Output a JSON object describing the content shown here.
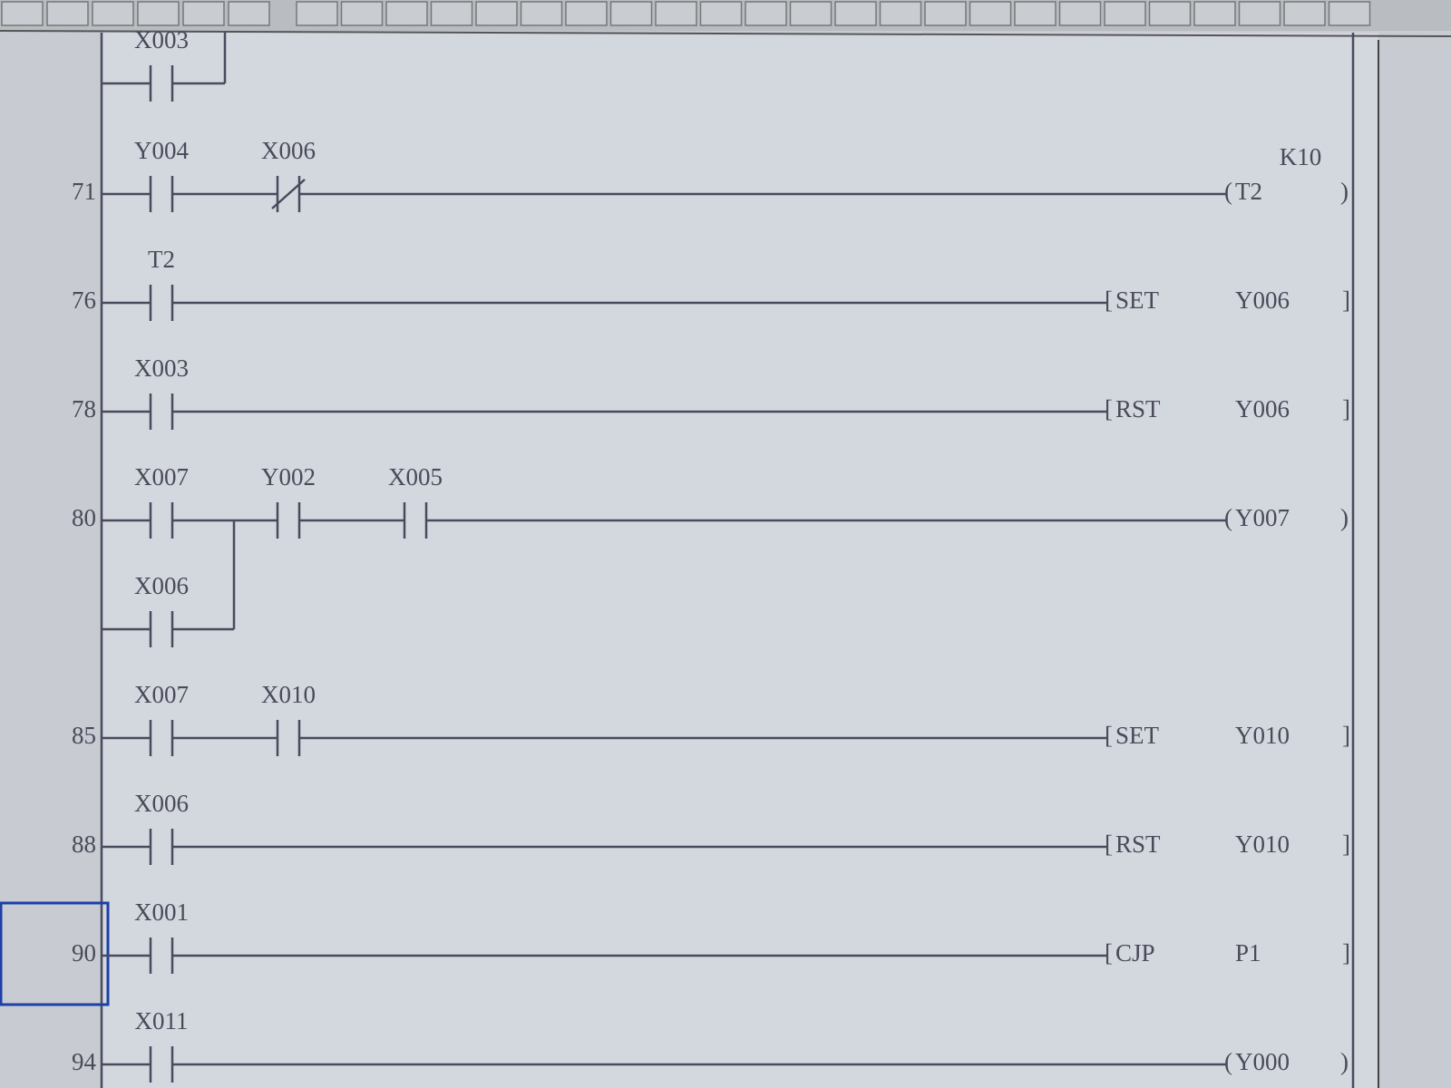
{
  "partial_rung": {
    "contact": {
      "label": "X003"
    }
  },
  "rungs": [
    {
      "step": "71",
      "contacts": [
        {
          "label": "Y004"
        },
        {
          "label": "X006",
          "normally_closed": true
        }
      ],
      "output": {
        "kind": "coil",
        "name": "T2",
        "setting": "K10"
      }
    },
    {
      "step": "76",
      "contacts": [
        {
          "label": "T2"
        }
      ],
      "output": {
        "kind": "instruction",
        "name": "SET",
        "operand": "Y006"
      }
    },
    {
      "step": "78",
      "contacts": [
        {
          "label": "X003"
        }
      ],
      "output": {
        "kind": "instruction",
        "name": "RST",
        "operand": "Y006"
      }
    },
    {
      "step": "80",
      "contacts": [
        {
          "label": "X007"
        }
      ],
      "branch": [
        {
          "label": "X006"
        }
      ],
      "after_branch": [
        {
          "label": "Y002"
        },
        {
          "label": "X005"
        }
      ],
      "output": {
        "kind": "coil",
        "name": "Y007"
      }
    },
    {
      "step": "85",
      "contacts": [
        {
          "label": "X007"
        },
        {
          "label": "X010"
        }
      ],
      "output": {
        "kind": "instruction",
        "name": "SET",
        "operand": "Y010"
      }
    },
    {
      "step": "88",
      "contacts": [
        {
          "label": "X006"
        }
      ],
      "output": {
        "kind": "instruction",
        "name": "RST",
        "operand": "Y010"
      }
    },
    {
      "step": "90",
      "contacts": [
        {
          "label": "X001"
        }
      ],
      "output": {
        "kind": "instruction",
        "name": "CJP",
        "operand": "P1"
      }
    },
    {
      "step": "94",
      "contacts": [
        {
          "label": "X011"
        }
      ],
      "output": {
        "kind": "coil",
        "name": "Y000"
      }
    }
  ]
}
